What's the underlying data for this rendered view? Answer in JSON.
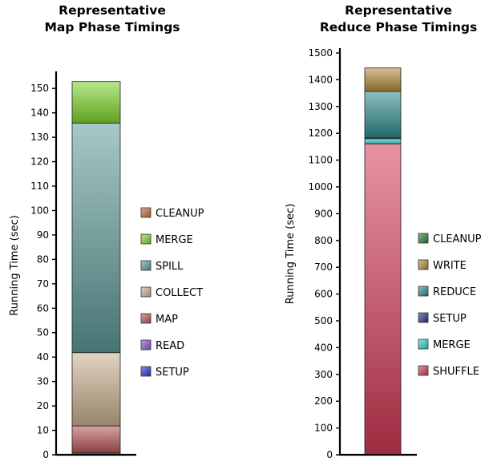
{
  "chart_data": [
    {
      "type": "bar",
      "stacked": true,
      "title_line1": "Representative",
      "title_line2": "Map Phase Timings",
      "ylabel": "Running Time (sec)",
      "xlabel": "",
      "ylim": [
        0,
        155
      ],
      "yticks": [
        "0",
        "10",
        "20",
        "30",
        "40",
        "50",
        "60",
        "70",
        "80",
        "90",
        "100",
        "110",
        "120",
        "130",
        "140",
        "150"
      ],
      "grid": false,
      "legend_position": "right",
      "legend": [
        {
          "name": "CLEANUP",
          "color": "#c46a3a"
        },
        {
          "name": "MERGE",
          "color": "#7ed62a"
        },
        {
          "name": "SPILL",
          "color": "#5f9b99"
        },
        {
          "name": "COLLECT",
          "color": "#c9b08e"
        },
        {
          "name": "MAP",
          "color": "#b6555b"
        },
        {
          "name": "READ",
          "color": "#8e4fcf"
        },
        {
          "name": "SETUP",
          "color": "#2733d8"
        }
      ],
      "series": [
        {
          "name": "SETUP",
          "value": 0.3,
          "color": "#2733d8"
        },
        {
          "name": "READ",
          "value": 0.5,
          "color": "#8e4fcf"
        },
        {
          "name": "MAP",
          "value": 11,
          "color": "#b6555b"
        },
        {
          "name": "COLLECT",
          "value": 30,
          "color": "#c9b08e"
        },
        {
          "name": "SPILL",
          "value": 94,
          "color": "#5f9b99"
        },
        {
          "name": "MERGE",
          "value": 17,
          "color": "#7ed62a"
        },
        {
          "name": "CLEANUP",
          "value": 0,
          "color": "#c46a3a"
        }
      ]
    },
    {
      "type": "bar",
      "stacked": true,
      "title_line1": "Representative",
      "title_line2": "Reduce Phase Timings",
      "ylabel": "Running Time (sec)",
      "xlabel": "",
      "ylim": [
        0,
        1500
      ],
      "yticks": [
        "0",
        "100",
        "200",
        "300",
        "400",
        "500",
        "600",
        "700",
        "800",
        "900",
        "1000",
        "1100",
        "1200",
        "1300",
        "1400",
        "1500"
      ],
      "grid": false,
      "legend_position": "right",
      "legend": [
        {
          "name": "CLEANUP",
          "color": "#2f7a3a"
        },
        {
          "name": "WRITE",
          "color": "#b28a3c"
        },
        {
          "name": "REDUCE",
          "color": "#2d8a8c"
        },
        {
          "name": "SETUP",
          "color": "#2a2f8a"
        },
        {
          "name": "MERGE",
          "color": "#2fd4d4"
        },
        {
          "name": "SHUFFLE",
          "color": "#d43a56"
        }
      ],
      "series": [
        {
          "name": "SHUFFLE",
          "value": 1160,
          "color": "#d43a56"
        },
        {
          "name": "MERGE",
          "value": 20,
          "color": "#2fd4d4"
        },
        {
          "name": "SETUP",
          "value": 3,
          "color": "#2a2f8a"
        },
        {
          "name": "REDUCE",
          "value": 173,
          "color": "#2d8a8c"
        },
        {
          "name": "WRITE",
          "value": 88,
          "color": "#b28a3c"
        },
        {
          "name": "CLEANUP",
          "value": 0,
          "color": "#2f7a3a"
        }
      ]
    }
  ]
}
